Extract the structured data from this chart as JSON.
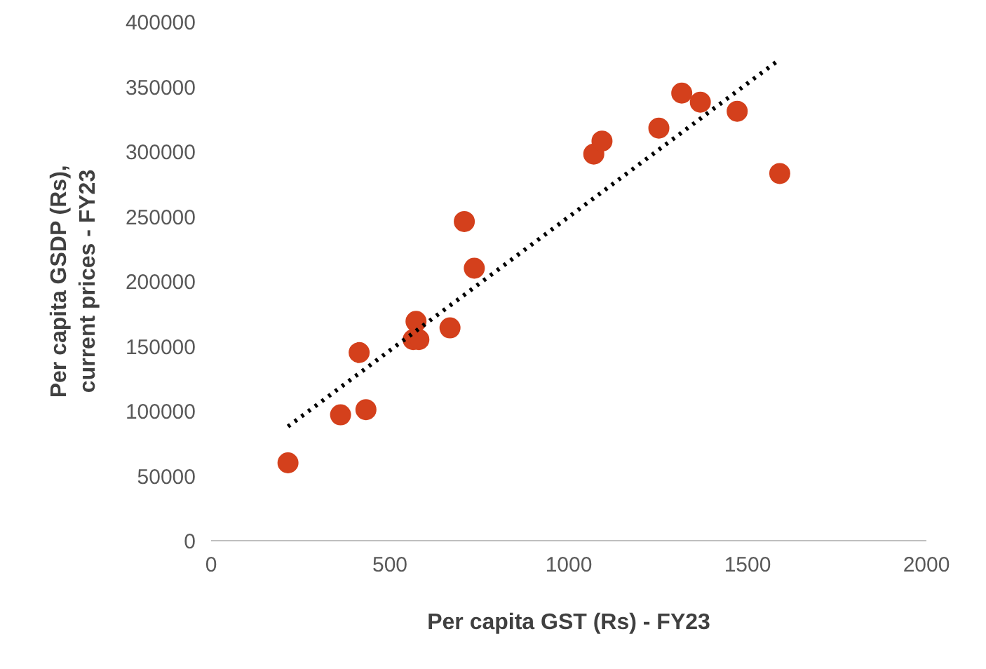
{
  "chart_data": {
    "type": "scatter",
    "xlabel": "Per capita GST (Rs) - FY23",
    "ylabel": "Per capita GSDP (Rs),\ncurrent prices - FY23",
    "xlim": [
      0,
      2000
    ],
    "xticks": [
      0,
      500,
      1000,
      1500,
      2000
    ],
    "ylim": [
      0,
      400000
    ],
    "yticks": [
      0,
      50000,
      100000,
      150000,
      200000,
      250000,
      300000,
      350000,
      400000
    ],
    "grid": false,
    "series": [
      {
        "marker": "circle",
        "color": "#d4401c",
        "x": [
          215,
          362,
          433,
          414,
          565,
          581,
          573,
          668,
          708,
          736,
          1070,
          1093,
          1252,
          1316,
          1368,
          1471,
          1590
        ],
        "values": [
          60000,
          97000,
          101000,
          145000,
          155000,
          155000,
          169000,
          164000,
          246000,
          210000,
          298000,
          308000,
          318000,
          345000,
          338000,
          331000,
          283000
        ]
      },
      {
        "type": "line",
        "color": "#000000",
        "line_style": "dotted",
        "x": [
          215,
          1590
        ],
        "values": [
          88000,
          371000
        ]
      }
    ]
  }
}
